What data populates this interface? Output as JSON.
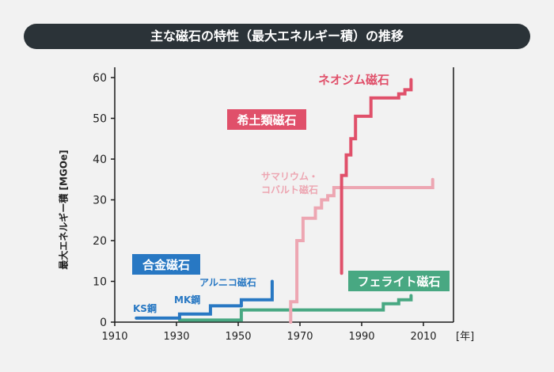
{
  "title": "主な磁石の特性（最大エネルギー積）の推移",
  "chart_data": {
    "type": "line",
    "step": true,
    "ylabel": "最大エネルギー積 [MGOe]",
    "xlabel": "[年]",
    "xlim": [
      1910,
      2020
    ],
    "ylim": [
      0,
      62
    ],
    "x_ticks": [
      1910,
      1930,
      1950,
      1970,
      1990,
      2010
    ],
    "y_ticks": [
      0,
      10,
      20,
      30,
      40,
      50,
      60
    ],
    "grid": false,
    "colors": {
      "alloy": "#2878c3",
      "ferrite": "#48a882",
      "smco": "#eda6b2",
      "ndfeb": "#e0506a",
      "axis": "#1a1a1a"
    },
    "groups": [
      {
        "name": "合金磁石",
        "color": "#2878c3"
      },
      {
        "name": "フェライト磁石",
        "color": "#48a882"
      },
      {
        "name": "希土類磁石",
        "color": "#e0506a"
      }
    ],
    "series": [
      {
        "name": "KS鋼",
        "group": "合金磁石",
        "x": [
          1917,
          1931
        ],
        "y": [
          1.0,
          1.0
        ]
      },
      {
        "name": "MK鋼",
        "group": "合金磁石",
        "x": [
          1931,
          1931,
          1941,
          1941,
          1951
        ],
        "y": [
          1.0,
          2.0,
          2.0,
          4.0,
          4.0
        ]
      },
      {
        "name": "アルニコ磁石",
        "group": "合金磁石",
        "x": [
          1951,
          1951,
          1961,
          1961
        ],
        "y": [
          4.0,
          5.5,
          5.5,
          10.0
        ]
      },
      {
        "name": "フェライト",
        "group": "フェライト磁石",
        "x": [
          1931,
          1951,
          1951,
          1997,
          1997,
          2002,
          2002,
          2006,
          2006
        ],
        "y": [
          0.5,
          0.5,
          3.0,
          3.0,
          4.5,
          4.5,
          5.5,
          5.5,
          6.5
        ]
      },
      {
        "name": "サマリウム・コバルト磁石",
        "group": "希土類磁石",
        "x": [
          1967,
          1967,
          1969,
          1969,
          1971,
          1971,
          1975,
          1975,
          1977,
          1977,
          1979,
          1979,
          1981,
          1981,
          2013,
          2013
        ],
        "y": [
          0.0,
          5.0,
          5.0,
          20.0,
          20.0,
          25.5,
          25.5,
          28.0,
          28.0,
          30.0,
          30.0,
          31.0,
          31.0,
          33.0,
          33.0,
          35.0
        ]
      },
      {
        "name": "ネオジム磁石",
        "group": "希土類磁石",
        "x": [
          1983.5,
          1983.5,
          1985,
          1985,
          1986.5,
          1986.5,
          1988,
          1988,
          1993,
          1993,
          2002,
          2002,
          2004,
          2004,
          2006,
          2006
        ],
        "y": [
          12.0,
          36.0,
          36.0,
          41.0,
          41.0,
          45.0,
          45.0,
          50.5,
          50.5,
          55.0,
          55.0,
          56.0,
          56.0,
          57.0,
          57.0,
          59.5
        ]
      }
    ],
    "annotations": [
      {
        "text": "KS鋼",
        "series": "KS鋼"
      },
      {
        "text": "MK鋼",
        "series": "MK鋼"
      },
      {
        "text": "アルニコ磁石",
        "series": "アルニコ磁石"
      },
      {
        "text": "サマリウム・",
        "series": "サマリウム・コバルト磁石"
      },
      {
        "text": "コバルト磁石",
        "series": "サマリウム・コバルト磁石"
      },
      {
        "text": "ネオジム磁石",
        "series": "ネオジム磁石"
      }
    ]
  }
}
